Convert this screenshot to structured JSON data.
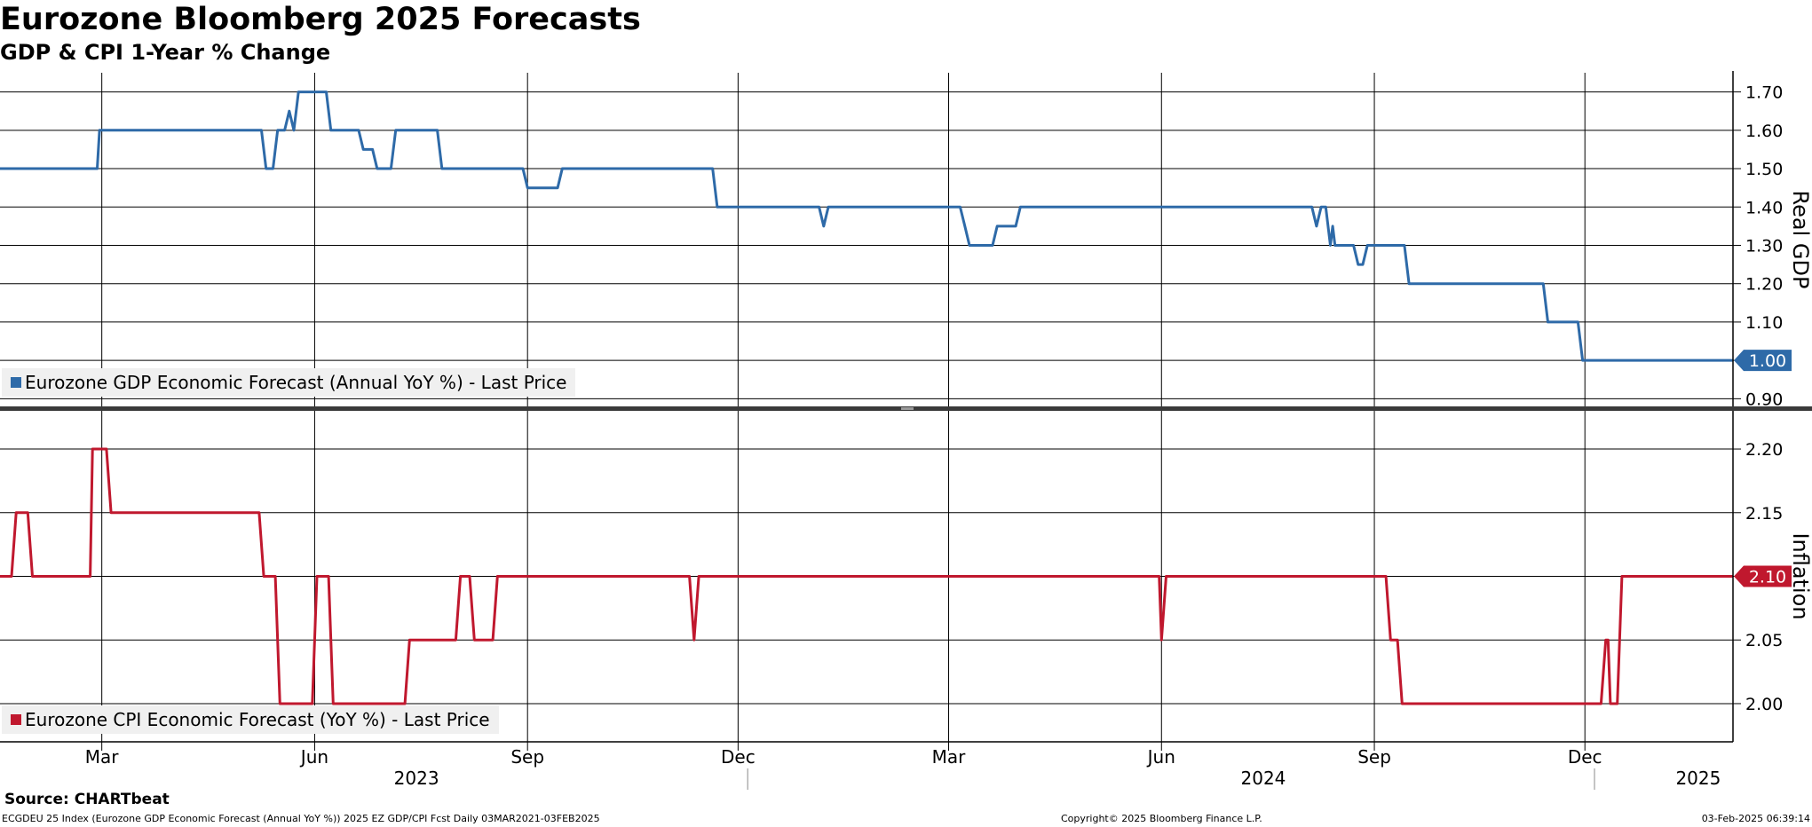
{
  "header": {
    "title": "Eurozone Bloomberg 2025 Forecasts",
    "subtitle": "GDP & CPI 1-Year % Change"
  },
  "footer": {
    "source": "Source: CHARTbeat",
    "description": "ECGDEU 25 Index (Eurozone GDP Economic Forecast (Annual YoY %)) 2025 EZ GDP/CPI Fcst  Daily 03MAR2021-03FEB2025",
    "copyright": "Copyright© 2025 Bloomberg Finance L.P.",
    "timestamp": "03-Feb-2025 06:39:14"
  },
  "colors": {
    "gdp": "#2e6aa8",
    "cpi": "#c0182e",
    "grid": "#000000",
    "legend_bg": "#f0f0f0"
  },
  "x_axis": {
    "month_ticks": [
      {
        "date": "2023-03-01",
        "label": "Mar"
      },
      {
        "date": "2023-06-01",
        "label": "Jun"
      },
      {
        "date": "2023-09-01",
        "label": "Sep"
      },
      {
        "date": "2023-12-01",
        "label": "Dec"
      },
      {
        "date": "2024-03-01",
        "label": "Mar"
      },
      {
        "date": "2024-06-01",
        "label": "Jun"
      },
      {
        "date": "2024-09-01",
        "label": "Sep"
      },
      {
        "date": "2024-12-01",
        "label": "Dec"
      }
    ],
    "years": [
      {
        "label": "2023",
        "center": "2023-07-15"
      },
      {
        "label": "2024",
        "center": "2024-07-15"
      },
      {
        "label": "2025",
        "center": "2025-01-19"
      }
    ],
    "year_dividers": [
      "2024-01-01",
      "2025-01-01"
    ],
    "range": [
      "2023-01-16",
      "2025-02-03"
    ]
  },
  "chart_data": [
    {
      "type": "line",
      "ylabel": "Real GDP",
      "ylim": [
        0.88,
        1.75
      ],
      "yticks": [
        0.9,
        1.0,
        1.1,
        1.2,
        1.3,
        1.4,
        1.5,
        1.6,
        1.7
      ],
      "grid": true,
      "legend": "top-left inside, bottom",
      "last_value_label": "1.00",
      "series": [
        {
          "name": "Eurozone GDP Economic Forecast (Annual YoY %) - Last Price",
          "points": [
            [
              "2023-01-16",
              1.5
            ],
            [
              "2023-02-27",
              1.5
            ],
            [
              "2023-02-28",
              1.6
            ],
            [
              "2023-05-09",
              1.6
            ],
            [
              "2023-05-11",
              1.5
            ],
            [
              "2023-05-14",
              1.5
            ],
            [
              "2023-05-16",
              1.6
            ],
            [
              "2023-05-19",
              1.6
            ],
            [
              "2023-05-21",
              1.65
            ],
            [
              "2023-05-23",
              1.6
            ],
            [
              "2023-05-25",
              1.7
            ],
            [
              "2023-06-06",
              1.7
            ],
            [
              "2023-06-08",
              1.6
            ],
            [
              "2023-06-20",
              1.6
            ],
            [
              "2023-06-22",
              1.55
            ],
            [
              "2023-06-26",
              1.55
            ],
            [
              "2023-06-28",
              1.5
            ],
            [
              "2023-07-04",
              1.5
            ],
            [
              "2023-07-06",
              1.6
            ],
            [
              "2023-07-24",
              1.6
            ],
            [
              "2023-07-26",
              1.5
            ],
            [
              "2023-08-30",
              1.5
            ],
            [
              "2023-09-01",
              1.45
            ],
            [
              "2023-09-14",
              1.45
            ],
            [
              "2023-09-16",
              1.5
            ],
            [
              "2023-11-20",
              1.5
            ],
            [
              "2023-11-22",
              1.4
            ],
            [
              "2024-01-05",
              1.4
            ],
            [
              "2024-01-07",
              1.35
            ],
            [
              "2024-01-09",
              1.4
            ],
            [
              "2024-03-06",
              1.4
            ],
            [
              "2024-03-08",
              1.35
            ],
            [
              "2024-03-10",
              1.3
            ],
            [
              "2024-03-20",
              1.3
            ],
            [
              "2024-03-22",
              1.35
            ],
            [
              "2024-03-30",
              1.35
            ],
            [
              "2024-04-01",
              1.4
            ],
            [
              "2024-08-05",
              1.4
            ],
            [
              "2024-08-07",
              1.35
            ],
            [
              "2024-08-09",
              1.4
            ],
            [
              "2024-08-11",
              1.4
            ],
            [
              "2024-08-13",
              1.3
            ],
            [
              "2024-08-14",
              1.35
            ],
            [
              "2024-08-15",
              1.3
            ],
            [
              "2024-08-23",
              1.3
            ],
            [
              "2024-08-25",
              1.25
            ],
            [
              "2024-08-27",
              1.25
            ],
            [
              "2024-08-29",
              1.3
            ],
            [
              "2024-09-14",
              1.3
            ],
            [
              "2024-09-16",
              1.2
            ],
            [
              "2024-11-13",
              1.2
            ],
            [
              "2024-11-15",
              1.1
            ],
            [
              "2024-11-28",
              1.1
            ],
            [
              "2024-11-30",
              1.0
            ],
            [
              "2025-02-03",
              1.0
            ]
          ]
        }
      ]
    },
    {
      "type": "line",
      "ylabel": "Inflation",
      "ylim": [
        1.97,
        2.23
      ],
      "yticks": [
        2.0,
        2.05,
        2.1,
        2.15,
        2.2
      ],
      "grid": true,
      "legend": "top-left inside, bottom",
      "last_value_label": "2.10",
      "series": [
        {
          "name": "Eurozone CPI Economic Forecast (YoY %) - Last Price",
          "points": [
            [
              "2023-01-16",
              2.1
            ],
            [
              "2023-01-21",
              2.1
            ],
            [
              "2023-01-23",
              2.15
            ],
            [
              "2023-01-28",
              2.15
            ],
            [
              "2023-01-30",
              2.1
            ],
            [
              "2023-02-24",
              2.1
            ],
            [
              "2023-02-25",
              2.2
            ],
            [
              "2023-03-03",
              2.2
            ],
            [
              "2023-03-05",
              2.15
            ],
            [
              "2023-05-08",
              2.15
            ],
            [
              "2023-05-10",
              2.1
            ],
            [
              "2023-05-15",
              2.1
            ],
            [
              "2023-05-17",
              2.0
            ],
            [
              "2023-05-31",
              2.0
            ],
            [
              "2023-06-02",
              2.1
            ],
            [
              "2023-06-07",
              2.1
            ],
            [
              "2023-06-09",
              2.0
            ],
            [
              "2023-07-10",
              2.0
            ],
            [
              "2023-07-12",
              2.05
            ],
            [
              "2023-08-01",
              2.05
            ],
            [
              "2023-08-03",
              2.1
            ],
            [
              "2023-08-07",
              2.1
            ],
            [
              "2023-08-09",
              2.05
            ],
            [
              "2023-08-17",
              2.05
            ],
            [
              "2023-08-19",
              2.1
            ],
            [
              "2023-11-10",
              2.1
            ],
            [
              "2023-11-12",
              2.05
            ],
            [
              "2023-11-14",
              2.1
            ],
            [
              "2024-05-31",
              2.1
            ],
            [
              "2024-06-01",
              2.05
            ],
            [
              "2024-06-03",
              2.1
            ],
            [
              "2024-09-06",
              2.1
            ],
            [
              "2024-09-08",
              2.05
            ],
            [
              "2024-09-11",
              2.05
            ],
            [
              "2024-09-13",
              2.0
            ],
            [
              "2024-12-08",
              2.0
            ],
            [
              "2024-12-10",
              2.05
            ],
            [
              "2024-12-11",
              2.05
            ],
            [
              "2024-12-12",
              2.0
            ],
            [
              "2024-12-15",
              2.0
            ],
            [
              "2024-12-17",
              2.1
            ],
            [
              "2025-02-03",
              2.1
            ]
          ]
        }
      ]
    }
  ]
}
